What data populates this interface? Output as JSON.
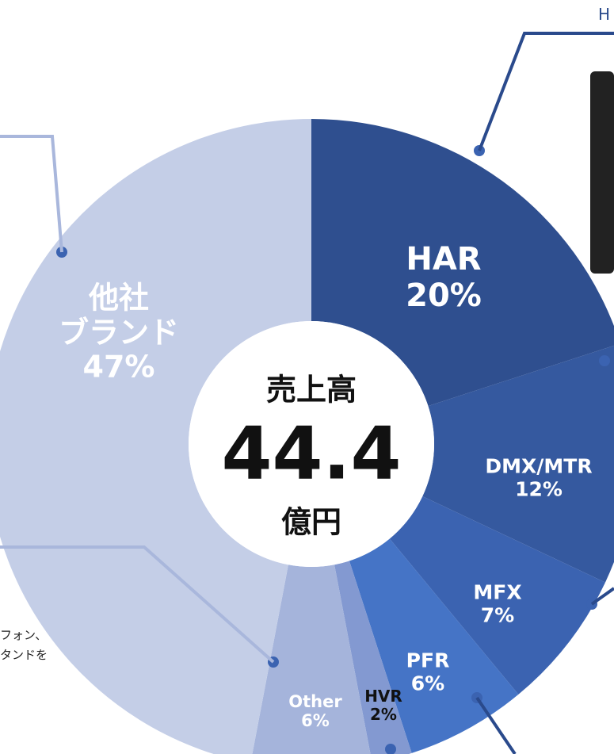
{
  "chart_data": {
    "type": "pie",
    "categories": [
      "HAR",
      "DMX/MTR",
      "MFX",
      "PFR",
      "HVR",
      "Other",
      "他社\nブランド"
    ],
    "values": [
      20,
      12,
      7,
      6,
      2,
      6,
      47
    ],
    "value_labels": [
      "20%",
      "12%",
      "7%",
      "6%",
      "2%",
      "6%",
      "47%"
    ],
    "colors": [
      "#2f4f8f",
      "#35599f",
      "#3b63b1",
      "#4574c6",
      "#8399d1",
      "#a5b4db",
      "#c4cee7"
    ],
    "donut": true,
    "center_text": [
      "売上高",
      "44.4",
      "億円"
    ],
    "annotations": [
      "H",
      "フォン、",
      "タンドを"
    ]
  }
}
